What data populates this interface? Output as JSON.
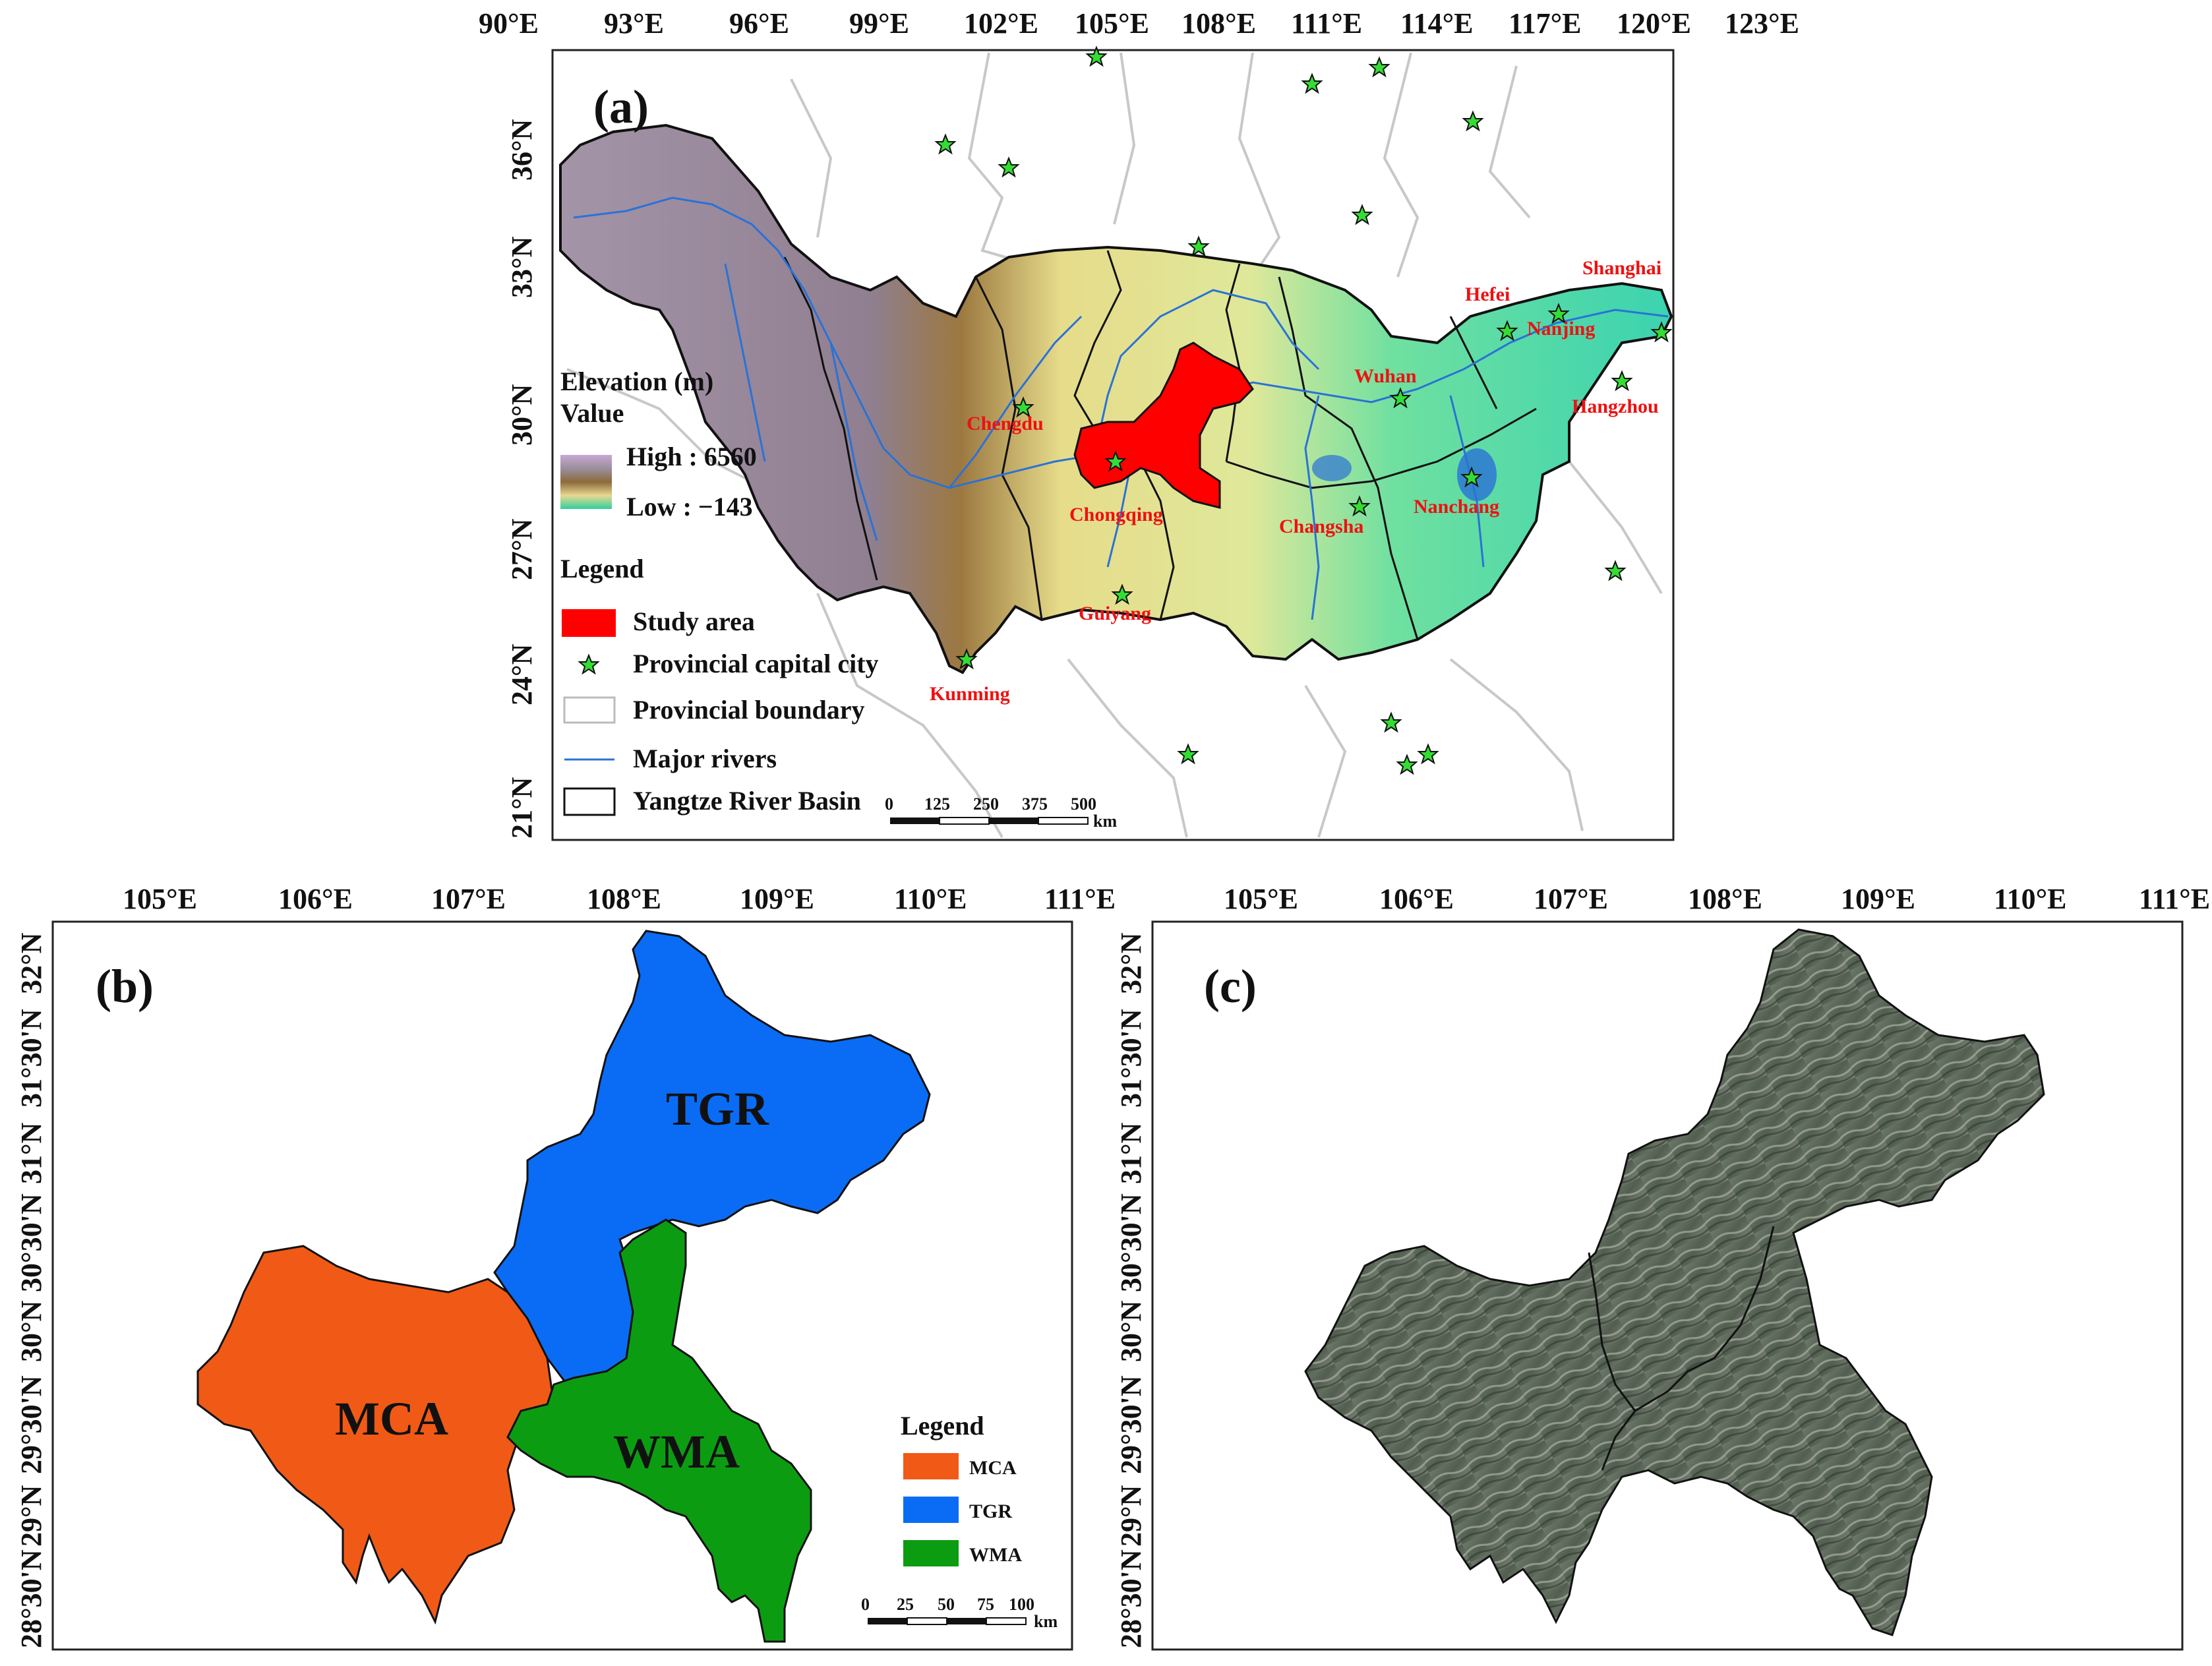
{
  "panel_a": {
    "label": "(a)",
    "lon_ticks": [
      "90°E",
      "93°E",
      "96°E",
      "99°E",
      "102°E",
      "105°E",
      "108°E",
      "111°E",
      "114°E",
      "117°E",
      "120°E",
      "123°E"
    ],
    "lat_ticks": [
      "36°N",
      "33°N",
      "30°N",
      "27°N",
      "24°N",
      "21°N"
    ],
    "elevation": {
      "title": "Elevation (m)",
      "subtitle": "Value",
      "high": "High : 6560",
      "low": "Low : −143"
    },
    "legend": {
      "title": "Legend",
      "items": [
        {
          "label": "Study area",
          "symbol": "red-fill"
        },
        {
          "label": "Provincial capital city",
          "symbol": "green-star"
        },
        {
          "label": "Provincial boundary",
          "symbol": "gray-outline"
        },
        {
          "label": "Major rivers",
          "symbol": "blue-line"
        },
        {
          "label": "Yangtze River Basin",
          "symbol": "black-outline"
        }
      ]
    },
    "cities": [
      "Shanghai",
      "Hefei",
      "Nanjing",
      "Wuhan",
      "Hangzhou",
      "Chengdu",
      "Chongqing",
      "Changsha",
      "Nanchang",
      "Guiyang",
      "Kunming"
    ],
    "scale_bar": {
      "labels": [
        "0",
        "125",
        "250",
        "375",
        "500"
      ],
      "unit": "km"
    }
  },
  "panel_b": {
    "label": "(b)",
    "lon_ticks": [
      "105°E",
      "106°E",
      "107°E",
      "108°E",
      "109°E",
      "110°E",
      "111°E"
    ],
    "lat_ticks": [
      "32°N",
      "31°30'N",
      "31°N",
      "30°30'N",
      "30°N",
      "29°30'N",
      "29°N",
      "28°30'N"
    ],
    "regions": {
      "tgr": "TGR",
      "mca": "MCA",
      "wma": "WMA"
    },
    "legend": {
      "title": "Legend",
      "items": [
        {
          "label": "MCA",
          "color": "#f05a16"
        },
        {
          "label": "TGR",
          "color": "#0a6cf5"
        },
        {
          "label": "WMA",
          "color": "#0c9c12"
        }
      ]
    },
    "scale_bar": {
      "labels": [
        "0",
        "25",
        "50",
        "75",
        "100"
      ],
      "unit": "km"
    }
  },
  "panel_c": {
    "label": "(c)",
    "lon_ticks": [
      "105°E",
      "106°E",
      "107°E",
      "108°E",
      "109°E",
      "110°E",
      "111°E"
    ],
    "lat_ticks": [
      "32°N",
      "31°30'N",
      "31°N",
      "30°30'N",
      "30°N",
      "29°30'N",
      "29°N",
      "28°30'N"
    ]
  },
  "colors": {
    "study_area": "#ff0000",
    "star": "#33dd33",
    "river": "#2a72d6",
    "mca": "#f05a16",
    "tgr": "#0a6cf5",
    "wma": "#0c9c12"
  }
}
